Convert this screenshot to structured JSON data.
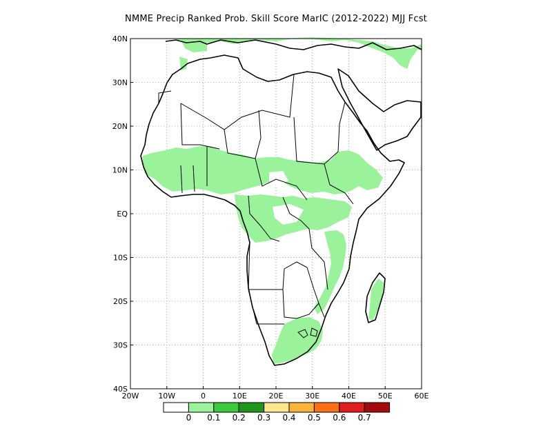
{
  "title": "NMME Precip Ranked Prob. Skill Score MarIC (2012-2022) MJJ Fcst",
  "map": {
    "region": "Africa",
    "lon_range": [
      -20,
      60
    ],
    "lat_range": [
      -40,
      40
    ],
    "grid": "dotted",
    "lat_ticks": [
      {
        "value": 40,
        "label": "40N"
      },
      {
        "value": 30,
        "label": "30N"
      },
      {
        "value": 20,
        "label": "20N"
      },
      {
        "value": 10,
        "label": "10N"
      },
      {
        "value": 0,
        "label": "EQ"
      },
      {
        "value": -10,
        "label": "10S"
      },
      {
        "value": -20,
        "label": "20S"
      },
      {
        "value": -30,
        "label": "30S"
      },
      {
        "value": -40,
        "label": "40S"
      }
    ],
    "lon_ticks": [
      {
        "value": -20,
        "label": "20W"
      },
      {
        "value": -10,
        "label": "10W"
      },
      {
        "value": 0,
        "label": "0"
      },
      {
        "value": 10,
        "label": "10E"
      },
      {
        "value": 20,
        "label": "20E"
      },
      {
        "value": 30,
        "label": "30E"
      },
      {
        "value": 40,
        "label": "40E"
      },
      {
        "value": 50,
        "label": "50E"
      },
      {
        "value": 60,
        "label": "60E"
      }
    ],
    "skill_regions": [
      {
        "level": "0-0.1",
        "area": "Sahel / West Africa band"
      },
      {
        "level": "0-0.1",
        "area": "Central Africa / Congo basin"
      },
      {
        "level": "0-0.1",
        "area": "Ethiopian highlands"
      },
      {
        "level": "0-0.1",
        "area": "East Africa / Tanzania / Mozambique"
      },
      {
        "level": "0-0.1",
        "area": "Eastern Madagascar"
      },
      {
        "level": "0-0.1",
        "area": "South Africa"
      },
      {
        "level": "0-0.1",
        "area": "Northern Mediterranean coast"
      }
    ]
  },
  "colorbar": {
    "colors": [
      "#ffffff",
      "#9af29a",
      "#3cc83c",
      "#1e961e",
      "#fae68c",
      "#fab43c",
      "#fa6e14",
      "#e11e1e",
      "#a50a0a"
    ],
    "labels": [
      "0",
      "0.1",
      "0.2",
      "0.3",
      "0.4",
      "0.5",
      "0.6",
      "0.7"
    ]
  }
}
